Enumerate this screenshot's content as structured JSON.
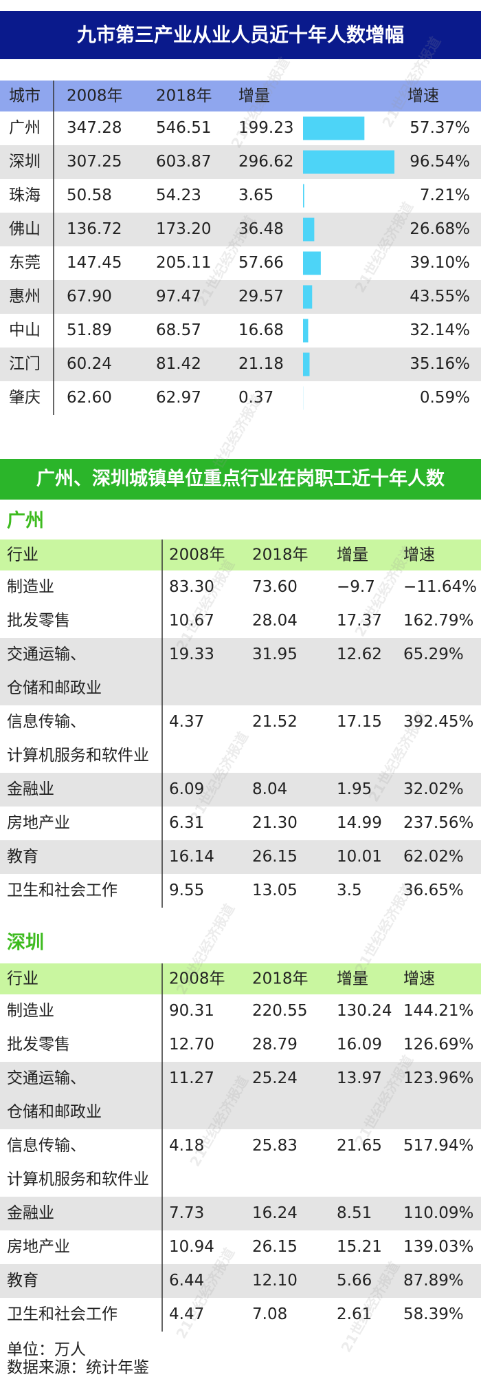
{
  "header": {
    "title": "九市第三产业从业人员近十年人数增幅"
  },
  "table1": {
    "columns": [
      "城市",
      "2008年",
      "2018年",
      "增量",
      "增速"
    ],
    "bar_color": "#4dd4f7",
    "rows": [
      {
        "city": "广州",
        "y2008": "347.28",
        "y2018": "546.51",
        "increase": 199.23,
        "growth": "57.37%"
      },
      {
        "city": "深圳",
        "y2008": "307.25",
        "y2018": "603.87",
        "increase": 296.62,
        "growth": "96.54%"
      },
      {
        "city": "珠海",
        "y2008": "50.58",
        "y2018": "54.23",
        "increase": 3.65,
        "growth": "7.21%"
      },
      {
        "city": "佛山",
        "y2008": "136.72",
        "y2018": "173.20",
        "increase": 36.48,
        "growth": "26.68%"
      },
      {
        "city": "东莞",
        "y2008": "147.45",
        "y2018": "205.11",
        "increase": 57.66,
        "growth": "39.10%"
      },
      {
        "city": "惠州",
        "y2008": "67.90",
        "y2018": "97.47",
        "increase": 29.57,
        "growth": "43.55%"
      },
      {
        "city": "中山",
        "y2008": "51.89",
        "y2018": "68.57",
        "increase": 16.68,
        "growth": "32.14%"
      },
      {
        "city": "江门",
        "y2008": "60.24",
        "y2018": "81.42",
        "increase": 21.18,
        "growth": "35.16%"
      },
      {
        "city": "肇庆",
        "y2008": "62.60",
        "y2018": "62.97",
        "increase": 0.37,
        "growth": "0.59%"
      }
    ]
  },
  "section2": {
    "title": "广州、深圳城镇单位重点行业在岗职工近十年人数",
    "tables": [
      {
        "name": "广州",
        "columns": [
          "行业",
          "2008年",
          "2018年",
          "增量",
          "增速"
        ],
        "rows": [
          {
            "industry": [
              "制造业"
            ],
            "cells": [
              "83.30",
              "73.60",
              "−9.7",
              "−11.64%"
            ]
          },
          {
            "industry": [
              "批发零售"
            ],
            "cells": [
              "10.67",
              "28.04",
              "17.37",
              "162.79%"
            ]
          },
          {
            "industry": [
              "交通运输、",
              "仓储和邮政业"
            ],
            "cells": [
              "19.33",
              "31.95",
              "12.62",
              "65.29%"
            ]
          },
          {
            "industry": [
              "信息传输、",
              "计算机服务和软件业"
            ],
            "cells": [
              "4.37",
              "21.52",
              "17.15",
              "392.45%"
            ]
          },
          {
            "industry": [
              "金融业"
            ],
            "cells": [
              "6.09",
              "8.04",
              "1.95",
              "32.02%"
            ]
          },
          {
            "industry": [
              "房地产业"
            ],
            "cells": [
              "6.31",
              "21.30",
              "14.99",
              "237.56%"
            ]
          },
          {
            "industry": [
              "教育"
            ],
            "cells": [
              "16.14",
              "26.15",
              "10.01",
              "62.02%"
            ]
          },
          {
            "industry": [
              "卫生和社会工作"
            ],
            "cells": [
              "9.55",
              "13.05",
              "3.5",
              "36.65%"
            ]
          }
        ]
      },
      {
        "name": "深圳",
        "columns": [
          "行业",
          "2008年",
          "2018年",
          "增量",
          "增速"
        ],
        "rows": [
          {
            "industry": [
              "制造业"
            ],
            "cells": [
              "90.31",
              "220.55",
              "130.24",
              "144.21%"
            ]
          },
          {
            "industry": [
              "批发零售"
            ],
            "cells": [
              "12.70",
              "28.79",
              "16.09",
              "126.69%"
            ]
          },
          {
            "industry": [
              "交通运输、",
              "仓储和邮政业"
            ],
            "cells": [
              "11.27",
              "25.24",
              "13.97",
              "123.96%"
            ]
          },
          {
            "industry": [
              "信息传输、",
              "计算机服务和软件业"
            ],
            "cells": [
              "4.18",
              "25.83",
              "21.65",
              "517.94%"
            ]
          },
          {
            "industry": [
              "金融业"
            ],
            "cells": [
              "7.73",
              "16.24",
              "8.51",
              "110.09%"
            ]
          },
          {
            "industry": [
              "房地产业"
            ],
            "cells": [
              "10.94",
              "26.15",
              "15.21",
              "139.03%"
            ]
          },
          {
            "industry": [
              "教育"
            ],
            "cells": [
              "6.44",
              "12.10",
              "5.66",
              "87.89%"
            ]
          },
          {
            "industry": [
              "卫生和社会工作"
            ],
            "cells": [
              "4.47",
              "7.08",
              "2.61",
              "58.39%"
            ]
          }
        ]
      }
    ]
  },
  "footer": {
    "unit": "单位：万人",
    "source": "数据来源：统计年鉴"
  },
  "watermark": "21世纪经济报道"
}
